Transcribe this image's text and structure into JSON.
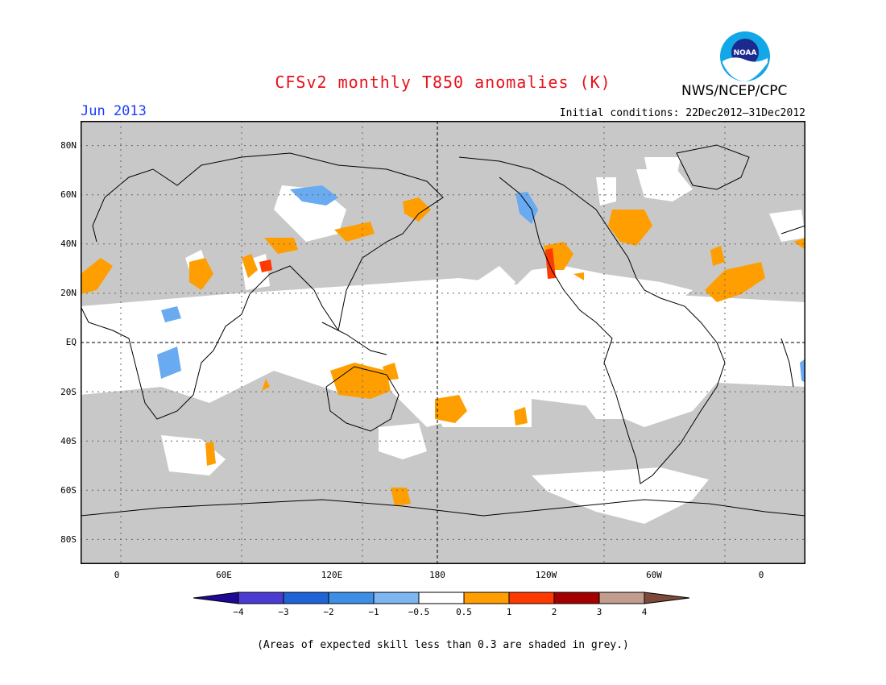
{
  "header": {
    "title": "CFSv2 monthly T850 anomalies (K)",
    "month": "Jun 2013",
    "initial_conditions": "Initial conditions: 22Dec2012–31Dec2012",
    "organization": "NWS/NCEP/CPC",
    "logo_text": "NOAA"
  },
  "axes": {
    "lat_labels": [
      "80N",
      "60N",
      "40N",
      "20N",
      "EQ",
      "20S",
      "40S",
      "60S",
      "80S"
    ],
    "lon_labels": [
      "0",
      "60E",
      "120E",
      "180",
      "120W",
      "60W",
      "0"
    ]
  },
  "colorbar": {
    "labels": [
      "−4",
      "−3",
      "−2",
      "−1",
      "−0.5",
      "0.5",
      "1",
      "2",
      "3",
      "4"
    ],
    "colors": [
      "#1e0896",
      "#4b3bd0",
      "#1f63d6",
      "#3d8fe6",
      "#7db6f0",
      "#ffffff",
      "#ff9e00",
      "#ff3a00",
      "#a40000",
      "#c29c8c",
      "#7d4a3a"
    ]
  },
  "colors": {
    "skill_grey": "#c8c8c8",
    "warm_anomaly": "#ff9e00",
    "strong_warm": "#ff3a00",
    "cool_anomaly": "#6aaaf0"
  },
  "footnote": "(Areas of expected skill less than 0.3 are shaded in grey.)"
}
